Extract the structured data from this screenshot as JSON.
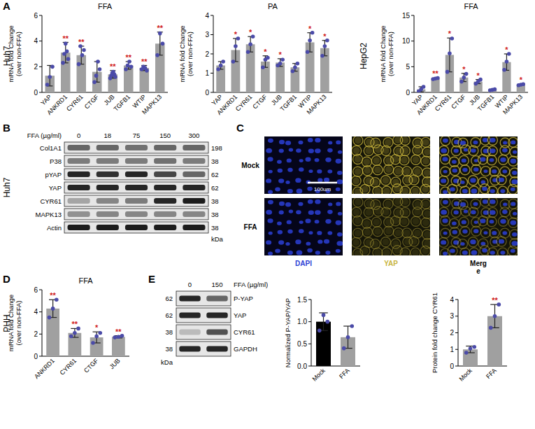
{
  "chart_data": [
    {
      "type": "bar",
      "title": "FFA",
      "y_label": [
        "mRNA fold Change",
        "(over non-FFA)"
      ],
      "categories": [
        "YAP",
        "ANKRD1",
        "CYR61",
        "CTGF",
        "JUB",
        "TGFB1",
        "WTIP",
        "MAPK13"
      ],
      "values": [
        1.3,
        3.1,
        2.9,
        1.6,
        1.4,
        2.1,
        1.9,
        3.8
      ],
      "errors": [
        0.8,
        0.8,
        0.7,
        0.8,
        0.3,
        0.3,
        0.2,
        0.9
      ],
      "points": [
        [
          0.6,
          1.2,
          2.0
        ],
        [
          2.3,
          3.0,
          3.8,
          3.2,
          2.6
        ],
        [
          2.2,
          3.6,
          2.9,
          3.3
        ],
        [
          0.8,
          1.3,
          2.4,
          1.8
        ],
        [
          1.1,
          1.3,
          1.5,
          1.6,
          1.4,
          1.2
        ],
        [
          1.8,
          2.1,
          2.4,
          2.0
        ],
        [
          1.8,
          2.0,
          1.9,
          1.7
        ],
        [
          2.9,
          4.6,
          3.8
        ]
      ],
      "significance": [
        null,
        "**",
        "**",
        null,
        "**",
        "**",
        "**",
        "**"
      ],
      "color": "#a0a0a0",
      "ylim": [
        0,
        6
      ],
      "yticks": [
        0,
        2,
        4,
        6
      ],
      "grid": false
    },
    {
      "type": "bar",
      "title": "PA",
      "y_label": [
        "mRNA fold Change",
        "(over non-FFA)"
      ],
      "categories": [
        "YAP",
        "ANKRD1",
        "CYR61",
        "CTGF",
        "JUB",
        "TGFB1",
        "WTIP",
        "MAPK13"
      ],
      "values": [
        1.4,
        2.2,
        2.5,
        1.6,
        1.55,
        1.3,
        2.6,
        2.3
      ],
      "errors": [
        0.2,
        0.6,
        0.4,
        0.3,
        0.2,
        0.2,
        0.5,
        0.4
      ],
      "points": [
        [
          1.2,
          1.4,
          1.6
        ],
        [
          1.6,
          2.4,
          2.8
        ],
        [
          2.1,
          2.5,
          2.9
        ],
        [
          1.3,
          1.7,
          1.8
        ],
        [
          1.4,
          1.5,
          1.7
        ],
        [
          1.1,
          1.3,
          1.5
        ],
        [
          2.1,
          2.7,
          3.1
        ],
        [
          1.9,
          2.4,
          2.7
        ]
      ],
      "significance": [
        null,
        "*",
        "*",
        "*",
        "*",
        null,
        "*",
        "*"
      ],
      "color": "#a0a0a0",
      "ylim": [
        0,
        4
      ],
      "yticks": [
        0,
        1,
        2,
        3,
        4
      ],
      "grid": false
    },
    {
      "type": "bar",
      "title": "FFA",
      "y_label": [
        "mRNA fold Change",
        "(over non-FFA)"
      ],
      "categories": [
        "YAP",
        "ANKRD1",
        "CYR61",
        "CTGF",
        "JUB",
        "TGFB1",
        "WTIP",
        "MAPK13"
      ],
      "values": [
        0.6,
        2.7,
        7.3,
        2.9,
        2.1,
        0.5,
        5.9,
        1.5
      ],
      "errors": [
        0.5,
        0.1,
        3.3,
        0.8,
        0.4,
        0.1,
        1.6,
        0.1
      ],
      "points": [
        [
          0.2,
          0.6,
          1.1
        ],
        [
          2.6,
          2.7,
          2.8
        ],
        [
          4.0,
          7.6,
          10.5
        ],
        [
          2.1,
          2.9,
          3.6
        ],
        [
          1.7,
          2.1,
          2.5
        ],
        [
          0.4,
          0.5,
          0.6
        ],
        [
          4.4,
          6.0,
          7.5
        ],
        [
          1.4,
          1.5,
          1.6
        ]
      ],
      "significance": [
        null,
        "**",
        "*",
        "*",
        "*",
        null,
        "*",
        "*"
      ],
      "color": "#a0a0a0",
      "ylim": [
        0,
        15
      ],
      "yticks": [
        0,
        5,
        10,
        15
      ],
      "grid": false
    },
    {
      "type": "bar",
      "title": "FFA",
      "y_label": [
        "mRNA fold Change",
        "(over non-FFA)"
      ],
      "categories": [
        "ANKRD1",
        "CYR61",
        "CTGF",
        "JUB"
      ],
      "values": [
        4.3,
        2.1,
        1.7,
        1.75
      ],
      "errors": [
        0.8,
        0.4,
        0.5,
        0.1
      ],
      "points": [
        [
          3.5,
          4.3,
          5.1
        ],
        [
          1.8,
          2.1,
          2.5
        ],
        [
          1.2,
          1.8,
          2.1
        ],
        [
          1.7,
          1.75,
          1.85
        ]
      ],
      "significance": [
        "**",
        "**",
        "*",
        "**"
      ],
      "color": "#a0a0a0",
      "ylim": [
        0,
        6
      ],
      "yticks": [
        0,
        2,
        4,
        6
      ],
      "grid": false
    },
    {
      "type": "bar",
      "y_label": [
        "Normalized P-YAP/YAP"
      ],
      "categories": [
        "Mock",
        "FFA"
      ],
      "values": [
        1.0,
        0.65
      ],
      "errors": [
        0.2,
        0.25
      ],
      "points": [
        [
          0.8,
          1.15,
          1.0
        ],
        [
          0.4,
          0.65,
          0.9
        ]
      ],
      "significance": [
        null,
        null
      ],
      "colors": [
        "#000000",
        "#a0a0a0"
      ],
      "ylim": [
        0,
        1.5
      ],
      "yticks": [
        {
          "value": 0,
          "label": "0.0"
        },
        {
          "value": 0.5,
          "label": "0.5"
        },
        {
          "value": 1,
          "label": "1.0"
        },
        {
          "value": 1.5,
          "label": "1.5"
        }
      ],
      "grid": false
    },
    {
      "type": "bar",
      "y_label": [
        "Protein fold change CYR61"
      ],
      "categories": [
        "Mock",
        "FFA"
      ],
      "values": [
        1.0,
        3.0
      ],
      "errors": [
        0.2,
        0.7
      ],
      "points": [
        [
          0.8,
          1.05,
          1.15
        ],
        [
          2.3,
          3.0,
          3.7
        ]
      ],
      "significance": [
        null,
        "**"
      ],
      "color": "#a0a0a0",
      "ylim": [
        0,
        4
      ],
      "yticks": [
        0,
        1,
        2,
        3,
        4
      ],
      "grid": false
    }
  ],
  "panel_letters": [
    "A",
    "B",
    "C",
    "D",
    "E"
  ],
  "row_labels": [
    "Huh7",
    "HepG2",
    "Huh7",
    "PHH"
  ],
  "blot_b": {
    "header": "FFA (µg/ml)",
    "lanes": [
      0,
      18,
      75,
      150,
      300
    ],
    "unit": "kDa",
    "rows": [
      {
        "label": "Col1A1",
        "kda": 198,
        "intensity": [
          0.6,
          0.6,
          0.55,
          0.6,
          0.6
        ]
      },
      {
        "label": "P38",
        "kda": 38,
        "intensity": [
          0.5,
          0.5,
          0.5,
          0.55,
          0.5
        ]
      },
      {
        "label": "pYAP",
        "kda": 62,
        "intensity": [
          0.9,
          0.85,
          0.9,
          0.75,
          0.6
        ]
      },
      {
        "label": "YAP",
        "kda": 62,
        "intensity": [
          0.9,
          0.9,
          0.9,
          0.9,
          0.9
        ]
      },
      {
        "label": "CYR61",
        "kda": 38,
        "intensity": [
          0.3,
          0.45,
          0.5,
          0.9,
          0.95
        ]
      },
      {
        "label": "MAPK13",
        "kda": 38,
        "intensity": [
          0.4,
          0.45,
          0.45,
          0.45,
          0.45
        ]
      },
      {
        "label": "Actin",
        "kda": 38,
        "intensity": [
          0.95,
          0.95,
          0.95,
          0.95,
          0.95
        ]
      }
    ]
  },
  "blot_e": {
    "header": "FFA (µg/ml)",
    "lanes": [
      0,
      150
    ],
    "unit": "kDa",
    "rows": [
      {
        "label": "P-YAP",
        "kda": 62,
        "intensity": [
          0.9,
          0.6
        ]
      },
      {
        "label": "YAP",
        "kda": 62,
        "intensity": [
          0.9,
          0.9
        ]
      },
      {
        "label": "CYR61",
        "kda": 38,
        "intensity": [
          0.2,
          0.7
        ]
      },
      {
        "label": "GAPDH",
        "kda": 38,
        "intensity": [
          0.9,
          0.9
        ]
      }
    ]
  },
  "images_c": {
    "rows": [
      "Mock",
      "FFA"
    ],
    "channels": [
      {
        "label": [
          "DAPI"
        ],
        "color": "#2c3fd6"
      },
      {
        "label": [
          "YAP"
        ],
        "color": "#c8b43c"
      },
      {
        "label": [
          "Merg",
          "e"
        ],
        "color": "#000000"
      }
    ],
    "scale_bar": "100um"
  }
}
